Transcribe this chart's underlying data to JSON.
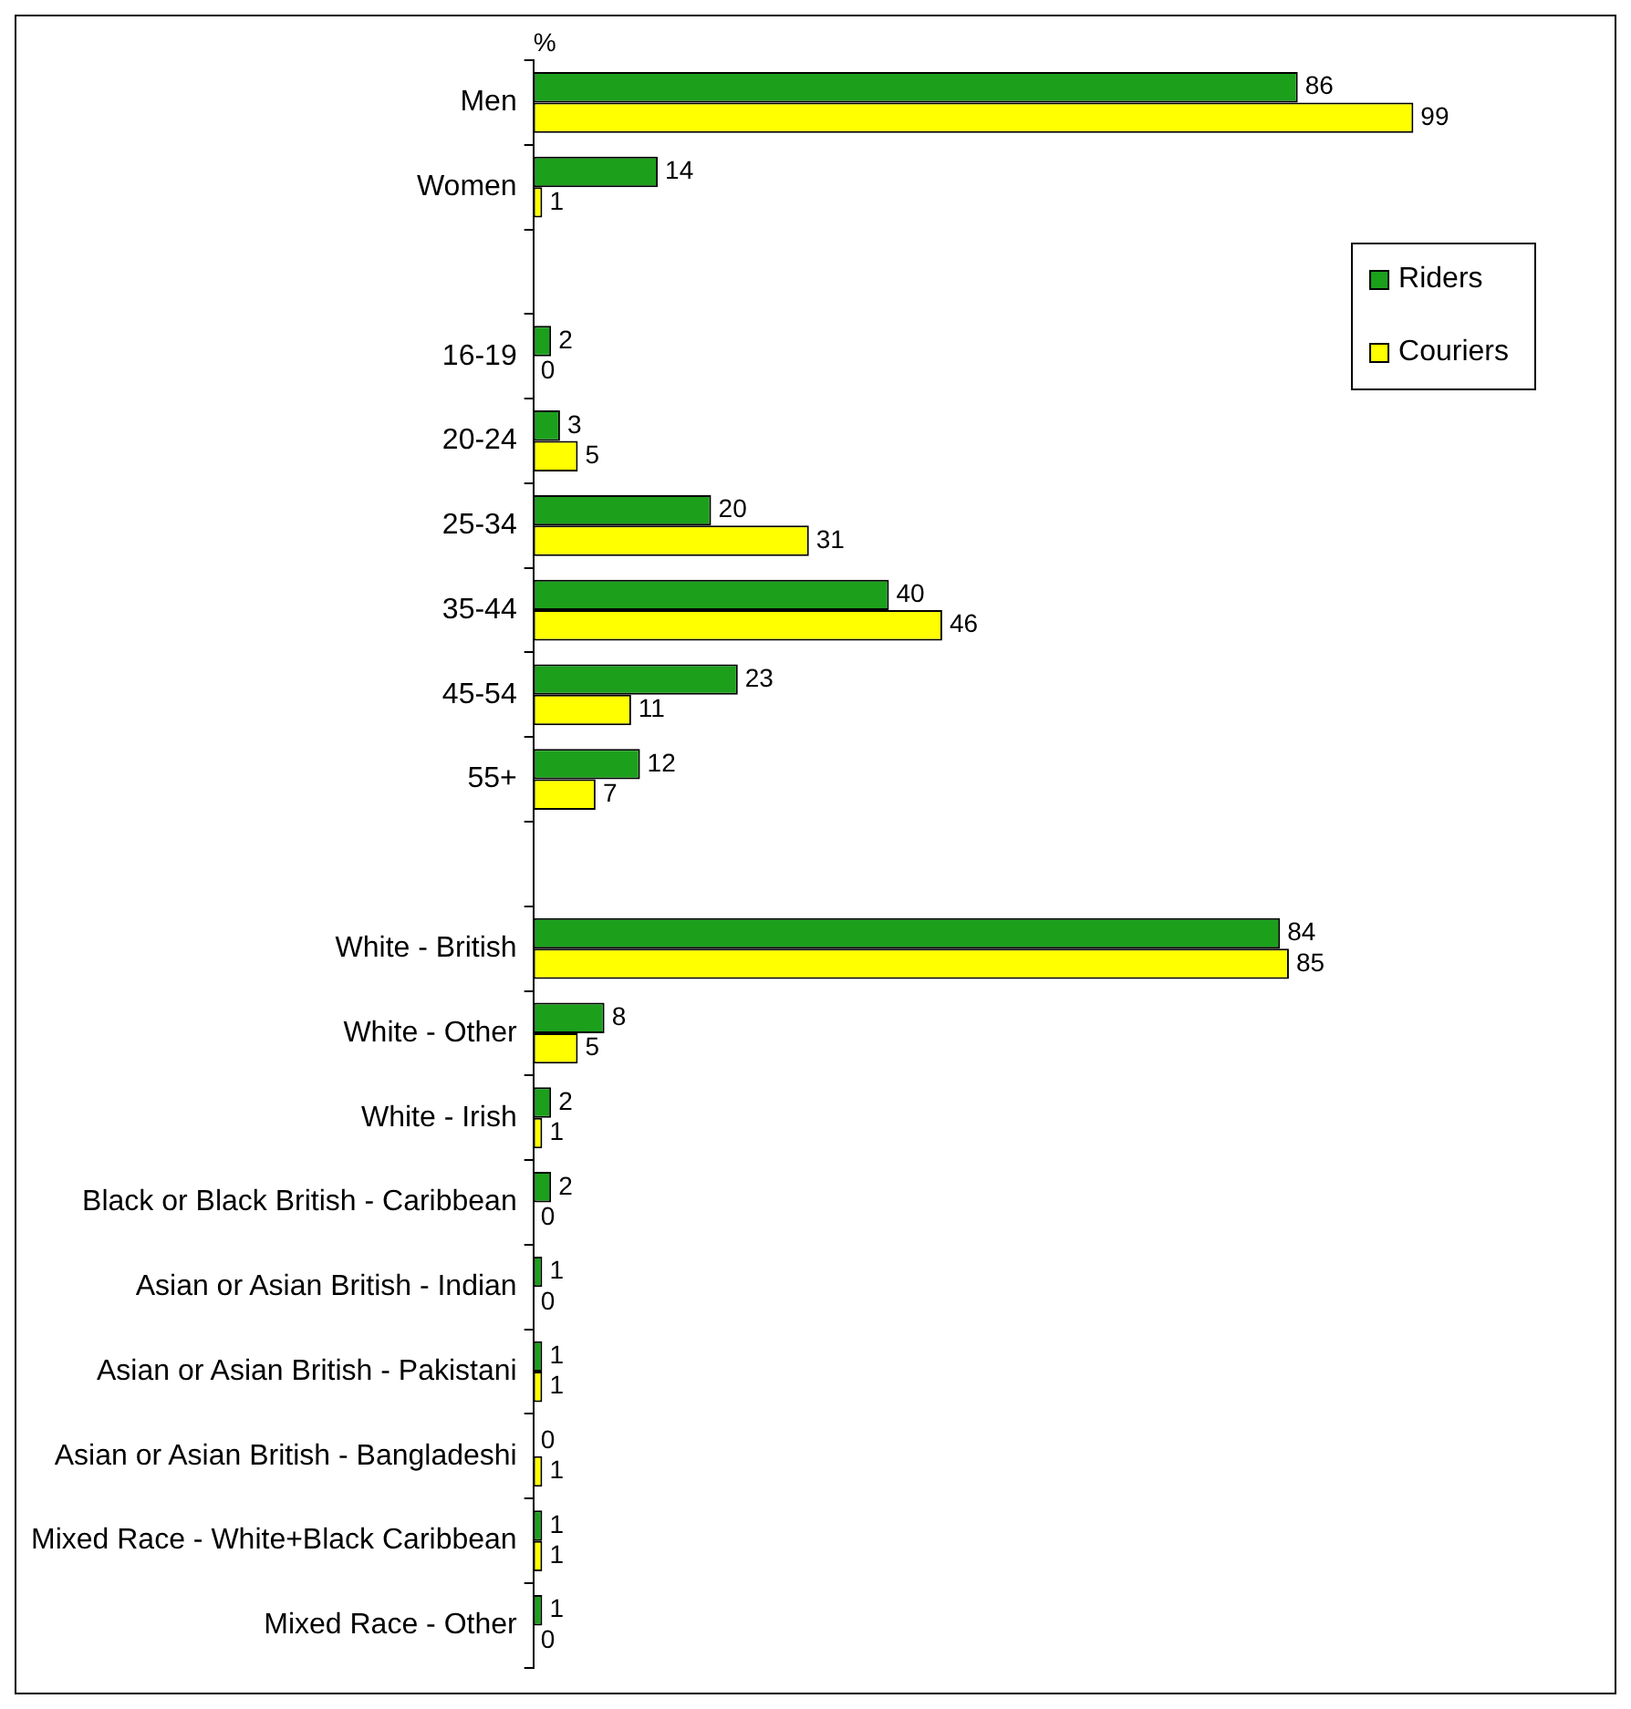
{
  "chart_data": {
    "type": "bar",
    "orientation": "horizontal",
    "xlabel": "%",
    "categories": [
      "Men",
      "Women",
      null,
      "16-19",
      "20-24",
      "25-34",
      "35-44",
      "45-54",
      "55+",
      null,
      "White - British",
      "White - Other",
      "White - Irish",
      "Black or Black British - Caribbean",
      "Asian or Asian British - Indian",
      "Asian or Asian British - Pakistani",
      "Asian or Asian British - Bangladeshi",
      "Mixed Race - White+Black Caribbean",
      "Mixed Race - Other"
    ],
    "series": [
      {
        "name": "Riders",
        "color": "#1ca01c",
        "values": [
          86,
          14,
          null,
          2,
          3,
          20,
          40,
          23,
          12,
          null,
          84,
          8,
          2,
          2,
          1,
          1,
          0,
          1,
          1
        ]
      },
      {
        "name": "Couriers",
        "color": "#ffff00",
        "values": [
          99,
          1,
          null,
          0,
          5,
          31,
          46,
          11,
          7,
          null,
          85,
          5,
          1,
          0,
          0,
          1,
          1,
          1,
          0
        ]
      }
    ],
    "data_labels": true,
    "legend": "top right",
    "tick_labels": "y"
  }
}
